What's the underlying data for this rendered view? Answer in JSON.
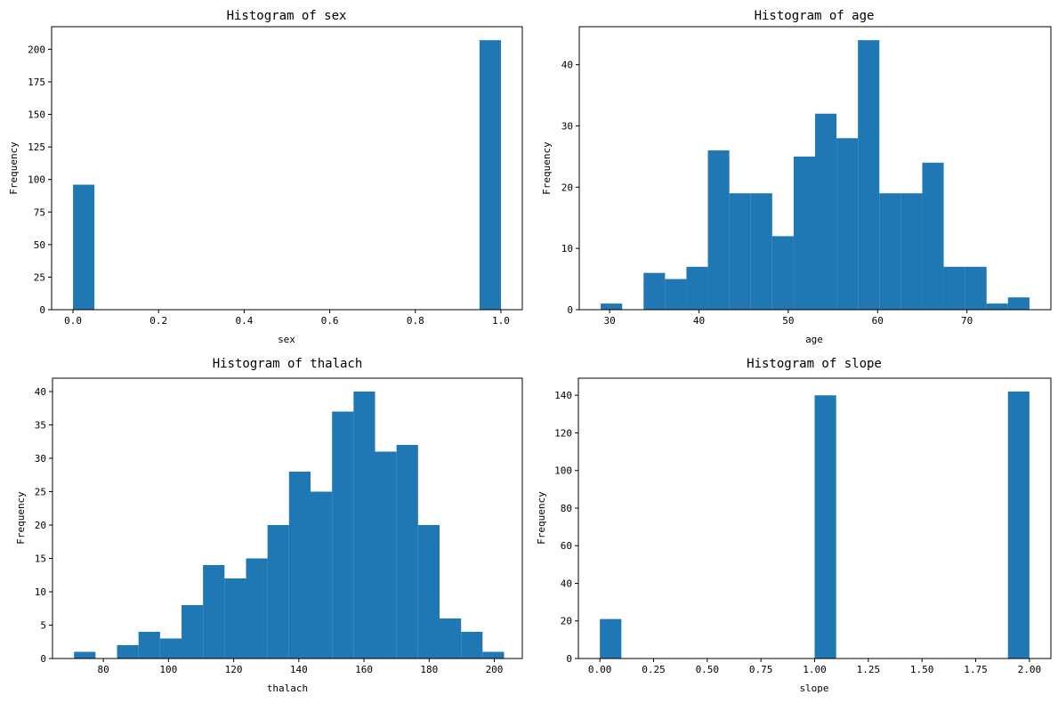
{
  "figure": {
    "bar_color": "#1f77b4",
    "axis_color": "#000000",
    "background": "#ffffff"
  },
  "chart_data": [
    {
      "type": "bar",
      "histogram": true,
      "title": "Histogram of sex",
      "xlabel": "sex",
      "ylabel": "Frequency",
      "xlim": [
        -0.05,
        1.05
      ],
      "ylim": [
        0,
        217.35
      ],
      "xticks": [
        0.0,
        0.2,
        0.4,
        0.6,
        0.8,
        1.0
      ],
      "xtick_labels": [
        "0.0",
        "0.2",
        "0.4",
        "0.6",
        "0.8",
        "1.0"
      ],
      "yticks": [
        0,
        25,
        50,
        75,
        100,
        125,
        150,
        175,
        200
      ],
      "ytick_labels": [
        "0",
        "25",
        "50",
        "75",
        "100",
        "125",
        "150",
        "175",
        "200"
      ],
      "bin_start": 0,
      "bin_width": 0.05,
      "counts": [
        96,
        0,
        0,
        0,
        0,
        0,
        0,
        0,
        0,
        0,
        0,
        0,
        0,
        0,
        0,
        0,
        0,
        0,
        0,
        207
      ]
    },
    {
      "type": "bar",
      "histogram": true,
      "title": "Histogram of age",
      "xlabel": "age",
      "ylabel": "Frequency",
      "xlim": [
        26.6,
        79.4
      ],
      "ylim": [
        0,
        46.2
      ],
      "xticks": [
        30,
        40,
        50,
        60,
        70
      ],
      "xtick_labels": [
        "30",
        "40",
        "50",
        "60",
        "70"
      ],
      "yticks": [
        0,
        10,
        20,
        30,
        40
      ],
      "ytick_labels": [
        "0",
        "10",
        "20",
        "30",
        "40"
      ],
      "bin_start": 29,
      "bin_width": 2.4,
      "counts": [
        1,
        0,
        6,
        5,
        7,
        26,
        19,
        19,
        12,
        25,
        32,
        28,
        44,
        19,
        19,
        24,
        7,
        7,
        1,
        2
      ]
    },
    {
      "type": "bar",
      "histogram": true,
      "title": "Histogram of thalach",
      "xlabel": "thalach",
      "ylabel": "Frequency",
      "xlim": [
        64.4,
        208.6
      ],
      "ylim": [
        0,
        42
      ],
      "xticks": [
        80,
        100,
        120,
        140,
        160,
        180,
        200
      ],
      "xtick_labels": [
        "80",
        "100",
        "120",
        "140",
        "160",
        "180",
        "200"
      ],
      "yticks": [
        0,
        5,
        10,
        15,
        20,
        25,
        30,
        35,
        40
      ],
      "ytick_labels": [
        "0",
        "5",
        "10",
        "15",
        "20",
        "25",
        "30",
        "35",
        "40"
      ],
      "bin_start": 71,
      "bin_width": 6.6,
      "counts": [
        1,
        0,
        2,
        4,
        3,
        8,
        14,
        12,
        15,
        20,
        28,
        25,
        37,
        40,
        31,
        32,
        20,
        6,
        4,
        1
      ]
    },
    {
      "type": "bar",
      "histogram": true,
      "title": "Histogram of slope",
      "xlabel": "slope",
      "ylabel": "Frequency",
      "xlim": [
        -0.1,
        2.1
      ],
      "ylim": [
        0,
        149.1
      ],
      "xticks": [
        0.0,
        0.25,
        0.5,
        0.75,
        1.0,
        1.25,
        1.5,
        1.75,
        2.0
      ],
      "xtick_labels": [
        "0.00",
        "0.25",
        "0.50",
        "0.75",
        "1.00",
        "1.25",
        "1.50",
        "1.75",
        "2.00"
      ],
      "yticks": [
        0,
        20,
        40,
        60,
        80,
        100,
        120,
        140
      ],
      "ytick_labels": [
        "0",
        "20",
        "40",
        "60",
        "80",
        "100",
        "120",
        "140"
      ],
      "bin_start": 0,
      "bin_width": 0.1,
      "counts": [
        21,
        0,
        0,
        0,
        0,
        0,
        0,
        0,
        0,
        0,
        140,
        0,
        0,
        0,
        0,
        0,
        0,
        0,
        0,
        142
      ]
    }
  ]
}
